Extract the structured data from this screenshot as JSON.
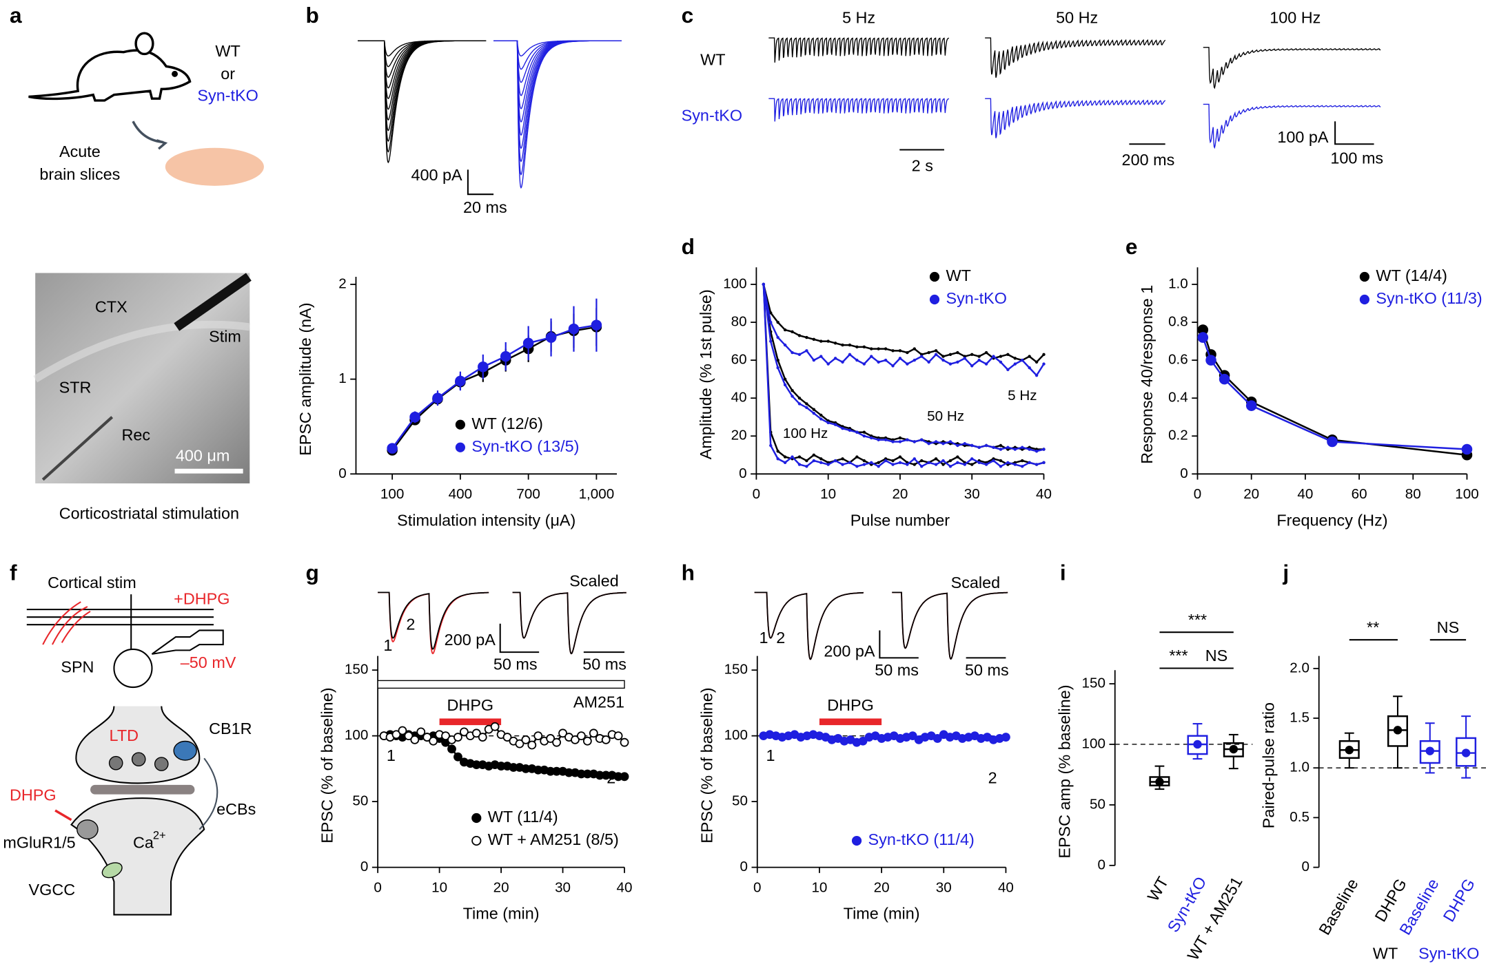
{
  "panel_labels": [
    "a",
    "b",
    "c",
    "d",
    "e",
    "f",
    "g",
    "h",
    "i",
    "j"
  ],
  "panel_a": {
    "genotype_1": "WT",
    "or": "or",
    "genotype_2": "Syn-tKO",
    "slices_1": "Acute",
    "slices_2": "brain slices",
    "ctx": "CTX",
    "stim": "Stim",
    "str": "STR",
    "rec": "Rec",
    "scale": "400 μm",
    "caption": "Corticostriatal stimulation"
  },
  "panel_b_traces": {
    "amp": "400 pA",
    "time": "20 ms"
  },
  "panel_c": {
    "freqs": [
      "5 Hz",
      "50 Hz",
      "100 Hz"
    ],
    "rows": [
      "WT",
      "Syn-tKO"
    ],
    "scales": [
      "2 s",
      "200 ms",
      "100 pA",
      "100 ms"
    ]
  },
  "panel_f": {
    "stim": "Cortical stim",
    "drug": "+DHPG",
    "cell": "SPN",
    "hold": "–50 mV",
    "cb1r": "CB1R",
    "ltd": "LTD",
    "dhpg": "DHPG",
    "ecbs": "eCBs",
    "mglur": "mGluR1/5",
    "ca": "Ca",
    "ca_sup": "2+",
    "vgcc": "VGCC"
  },
  "panel_g_traces": {
    "labels": [
      "1",
      "2"
    ],
    "amp": "200 pA",
    "time1": "50 ms",
    "time2": "50 ms",
    "scaled": "Scaled"
  },
  "panel_h_traces": {
    "labels": [
      "1",
      "2"
    ],
    "amp": "200 pA",
    "time1": "50 ms",
    "time2": "50 ms",
    "scaled": "Scaled"
  },
  "chart_data": [
    {
      "type": "line",
      "xlabel": "Stimulation intensity (μA)",
      "ylabel": "EPSC amplitude (nA)",
      "x": [
        100,
        200,
        300,
        400,
        500,
        600,
        700,
        800,
        900,
        1000
      ],
      "xlim": [
        -60,
        1090
      ],
      "xticks": [
        100,
        400,
        700,
        {
          "value": 1000,
          "label": "1,000"
        }
      ],
      "ylim": [
        0,
        2
      ],
      "yticks": [
        0,
        1,
        2
      ],
      "legend": "lower right",
      "series": [
        {
          "name": "WT (12/6)",
          "color": "#000000",
          "values": [
            0.25,
            0.57,
            0.79,
            0.97,
            1.07,
            1.2,
            1.32,
            1.45,
            1.51,
            1.55
          ],
          "errors": [
            0.03,
            0.05,
            0.06,
            0.08,
            0.1,
            0.12,
            0.14,
            0.16,
            0.18,
            0.2
          ]
        },
        {
          "name": "Syn-tKO (13/5)",
          "color": "#1f1fe0",
          "values": [
            0.27,
            0.6,
            0.8,
            0.98,
            1.13,
            1.24,
            1.38,
            1.44,
            1.53,
            1.57
          ],
          "errors": [
            0.04,
            0.06,
            0.08,
            0.1,
            0.13,
            0.15,
            0.18,
            0.2,
            0.24,
            0.28
          ]
        }
      ]
    },
    {
      "type": "line",
      "xlabel": "Pulse number",
      "ylabel": "Amplitude (% 1st pulse)",
      "x": [
        1,
        2,
        3,
        4,
        5,
        6,
        7,
        8,
        9,
        10,
        11,
        12,
        13,
        14,
        15,
        16,
        17,
        18,
        19,
        20,
        21,
        22,
        23,
        24,
        25,
        26,
        27,
        28,
        29,
        30,
        31,
        32,
        33,
        34,
        35,
        36,
        37,
        38,
        39,
        40
      ],
      "xlim": [
        0,
        40
      ],
      "xticks": [
        0,
        10,
        20,
        30,
        40
      ],
      "ylim": [
        0,
        105
      ],
      "yticks": [
        0,
        20,
        40,
        60,
        80,
        100
      ],
      "legend": "upper right",
      "curve_labels": [
        "5 Hz",
        "50 Hz",
        "100 Hz"
      ],
      "series": [
        {
          "name": "WT",
          "color": "#000000",
          "values": [
            [
              100,
              85,
              80,
              76,
              75,
              73,
              72,
              71,
              70,
              70,
              69,
              68,
              68,
              67,
              67,
              66,
              66,
              66,
              65,
              65,
              64,
              66,
              63,
              64,
              65,
              62,
              63,
              64,
              62,
              63,
              62,
              64,
              61,
              62,
              63,
              61,
              60,
              62,
              59,
              63
            ],
            [
              100,
              75,
              60,
              50,
              44,
              40,
              37,
              34,
              31,
              28,
              27,
              25,
              24,
              22,
              22,
              20,
              19,
              19,
              18,
              19,
              18,
              17,
              18,
              17,
              16,
              17,
              16,
              16,
              15,
              15,
              14,
              15,
              14,
              15,
              13,
              14,
              13,
              14,
              13,
              13
            ],
            [
              100,
              22,
              12,
              9,
              8,
              9,
              7,
              10,
              8,
              6,
              7,
              8,
              6,
              9,
              7,
              5,
              6,
              8,
              7,
              9,
              6,
              5,
              7,
              6,
              8,
              5,
              7,
              9,
              6,
              5,
              7,
              6,
              8,
              7,
              5,
              6,
              7,
              6,
              5,
              6
            ]
          ]
        },
        {
          "name": "Syn-tKO",
          "color": "#1f1fe0",
          "values": [
            [
              100,
              80,
              72,
              68,
              64,
              63,
              65,
              60,
              62,
              58,
              61,
              59,
              63,
              60,
              58,
              62,
              59,
              60,
              57,
              61,
              58,
              60,
              62,
              59,
              63,
              60,
              58,
              59,
              61,
              57,
              60,
              58,
              62,
              59,
              55,
              58,
              60,
              56,
              52,
              58
            ],
            [
              100,
              70,
              56,
              47,
              41,
              37,
              35,
              32,
              29,
              27,
              26,
              24,
              23,
              22,
              20,
              19,
              18,
              18,
              17,
              17,
              18,
              17,
              18,
              16,
              17,
              16,
              17,
              15,
              16,
              15,
              14,
              15,
              14,
              13,
              14,
              13,
              14,
              13,
              12,
              13
            ],
            [
              100,
              15,
              8,
              6,
              9,
              5,
              4,
              7,
              6,
              5,
              7,
              5,
              6,
              4,
              5,
              6,
              4,
              7,
              5,
              6,
              5,
              8,
              4,
              6,
              5,
              7,
              4,
              6,
              5,
              8,
              6,
              5,
              7,
              4,
              6,
              5,
              4,
              6,
              5,
              6
            ]
          ]
        }
      ]
    },
    {
      "type": "line",
      "xlabel": "Frequency (Hz)",
      "ylabel": "Response 40/response 1",
      "x": [
        2,
        5,
        10,
        20,
        50,
        100
      ],
      "xlim": [
        0,
        100
      ],
      "xticks": [
        0,
        20,
        40,
        60,
        80,
        100
      ],
      "ylim": [
        0,
        1.05
      ],
      "yticks": [
        0,
        0.2,
        0.4,
        0.6,
        0.8,
        {
          "value": 1,
          "label": "1.0"
        }
      ],
      "legend": "upper right",
      "series": [
        {
          "name": "WT (14/4)",
          "color": "#000000",
          "values": [
            0.76,
            0.63,
            0.52,
            0.38,
            0.18,
            0.1
          ]
        },
        {
          "name": "Syn-tKO (11/3)",
          "color": "#1f1fe0",
          "values": [
            0.72,
            0.6,
            0.5,
            0.36,
            0.17,
            0.13
          ]
        }
      ]
    },
    {
      "type": "line",
      "xlabel": "Time (min)",
      "ylabel": "EPSC (% of baseline)",
      "x": [
        1,
        2,
        3,
        4,
        5,
        6,
        7,
        8,
        9,
        10,
        11,
        12,
        13,
        14,
        15,
        16,
        17,
        18,
        19,
        20,
        21,
        22,
        23,
        24,
        25,
        26,
        27,
        28,
        29,
        30,
        31,
        32,
        33,
        34,
        35,
        36,
        37,
        38,
        39,
        40
      ],
      "xlim": [
        0,
        40
      ],
      "xticks": [
        0,
        10,
        20,
        30,
        40
      ],
      "ylim": [
        0,
        155
      ],
      "yticks": [
        0,
        50,
        100,
        150
      ],
      "legend": "lower right",
      "ref_line": 100,
      "drug_bar": {
        "text": "DHPG",
        "x": [
          10,
          20
        ]
      },
      "open_bar": {
        "text": "AM251",
        "x": [
          0,
          40
        ]
      },
      "point_labels": [
        "1",
        "2"
      ],
      "series": [
        {
          "name": "WT (11/4)",
          "color": "#000000",
          "marker": "filled",
          "values": [
            100,
            101,
            100,
            99,
            101,
            100,
            100,
            99,
            100,
            98,
            95,
            90,
            84,
            80,
            79,
            78,
            78,
            77,
            78,
            77,
            77,
            76,
            76,
            75,
            75,
            74,
            74,
            73,
            73,
            73,
            72,
            72,
            71,
            71,
            71,
            70,
            70,
            70,
            69,
            69
          ]
        },
        {
          "name": "WT + AM251 (8/5)",
          "color": "#000000",
          "marker": "open",
          "values": [
            100,
            99,
            101,
            104,
            100,
            97,
            103,
            99,
            96,
            101,
            100,
            97,
            99,
            103,
            100,
            102,
            99,
            105,
            107,
            101,
            99,
            96,
            94,
            97,
            93,
            100,
            96,
            98,
            95,
            102,
            99,
            97,
            100,
            96,
            102,
            98,
            97,
            101,
            100,
            95
          ]
        }
      ]
    },
    {
      "type": "line",
      "xlabel": "Time (min)",
      "ylabel": "EPSC (% of baseline)",
      "x": [
        1,
        2,
        3,
        4,
        5,
        6,
        7,
        8,
        9,
        10,
        11,
        12,
        13,
        14,
        15,
        16,
        17,
        18,
        19,
        20,
        21,
        22,
        23,
        24,
        25,
        26,
        27,
        28,
        29,
        30,
        31,
        32,
        33,
        34,
        35,
        36,
        37,
        38,
        39,
        40
      ],
      "xlim": [
        0,
        40
      ],
      "xticks": [
        0,
        10,
        20,
        30,
        40
      ],
      "ylim": [
        0,
        155
      ],
      "yticks": [
        0,
        50,
        100,
        150
      ],
      "legend": "lower right",
      "ref_line": 100,
      "drug_bar": {
        "text": "DHPG",
        "x": [
          10,
          20
        ]
      },
      "point_labels": [
        "1",
        "2"
      ],
      "series": [
        {
          "name": "Syn-tKO (11/4)",
          "color": "#1f1fe0",
          "marker": "filled",
          "values": [
            100,
            101,
            100,
            99,
            100,
            101,
            99,
            100,
            101,
            100,
            99,
            97,
            98,
            96,
            97,
            95,
            96,
            99,
            100,
            98,
            99,
            100,
            98,
            99,
            100,
            97,
            99,
            100,
            98,
            101,
            99,
            100,
            98,
            99,
            100,
            98,
            99,
            97,
            98,
            99
          ]
        }
      ]
    },
    {
      "type": "box",
      "ylabel": "EPSC amp (% baseline)",
      "ylim": [
        0,
        155
      ],
      "yticks": [
        0,
        50,
        100,
        150
      ],
      "ref_line": 100,
      "categories": [
        "WT",
        "Syn-tKO",
        "WT + AM251"
      ],
      "category_colors": [
        "#000000",
        "#1f1fe0",
        "#000000"
      ],
      "annotations": [
        "***",
        "***",
        "NS"
      ],
      "boxes": [
        {
          "min": 63,
          "q1": 66,
          "median": 69,
          "q3": 73,
          "max": 82
        },
        {
          "min": 88,
          "q1": 92,
          "median": 100,
          "q3": 107,
          "max": 117
        },
        {
          "min": 80,
          "q1": 90,
          "median": 96,
          "q3": 101,
          "max": 108
        }
      ]
    },
    {
      "type": "box",
      "ylabel": "Paired-pulse ratio",
      "ylim": [
        0,
        2.05
      ],
      "yticks": [
        0,
        0.5,
        {
          "value": 1,
          "label": "1.0"
        },
        1.5,
        {
          "value": 2,
          "label": "2.0"
        }
      ],
      "ref_line": 1,
      "categories": [
        "Baseline",
        "DHPG",
        "Baseline",
        "DHPG"
      ],
      "category_colors": [
        "#000000",
        "#000000",
        "#1f1fe0",
        "#1f1fe0"
      ],
      "groups": [
        "WT",
        "Syn-tKO"
      ],
      "group_colors": [
        "#000000",
        "#1f1fe0"
      ],
      "annotations": [
        "**",
        "NS"
      ],
      "boxes": [
        {
          "min": 1.0,
          "q1": 1.1,
          "median": 1.18,
          "q3": 1.27,
          "max": 1.35
        },
        {
          "min": 1.0,
          "q1": 1.22,
          "median": 1.38,
          "q3": 1.52,
          "max": 1.72
        },
        {
          "min": 0.95,
          "q1": 1.05,
          "median": 1.17,
          "q3": 1.27,
          "max": 1.45
        },
        {
          "min": 0.9,
          "q1": 1.02,
          "median": 1.15,
          "q3": 1.3,
          "max": 1.52
        }
      ]
    }
  ]
}
